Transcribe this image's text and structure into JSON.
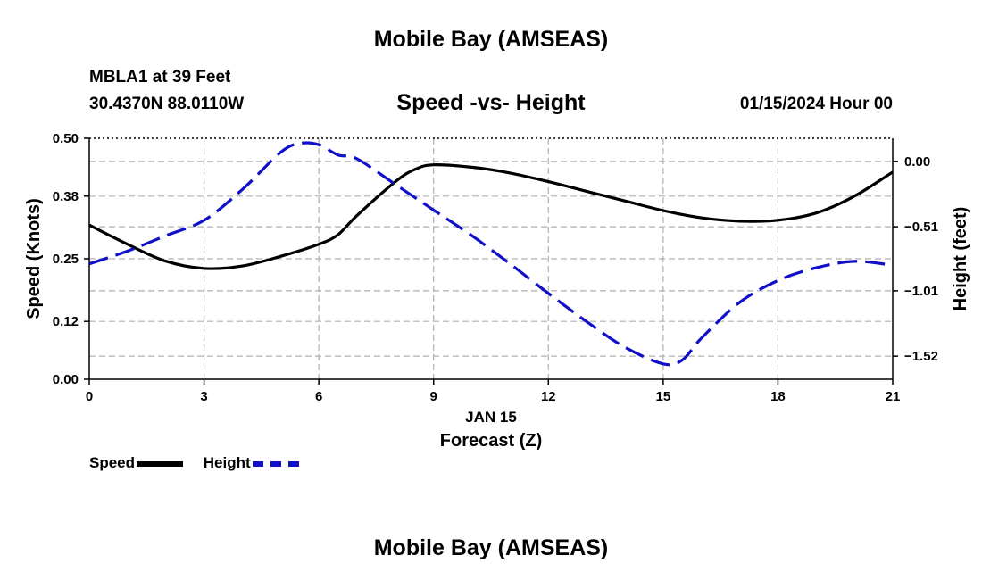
{
  "header": {
    "title": "Mobile Bay (AMSEAS)",
    "station": "MBLA1 at 39 Feet",
    "coords": "30.4370N  88.0110W",
    "subtitle": "Speed -vs- Height",
    "datetime": "01/15/2024 Hour 00"
  },
  "footer": {
    "title": "Mobile Bay (AMSEAS)"
  },
  "legend": {
    "speed_label": "Speed",
    "height_label": "Height"
  },
  "colors": {
    "speed": "#000000",
    "height": "#1010c8",
    "grid": "#b0b0b0"
  },
  "chart_data": {
    "type": "line",
    "title": "Speed -vs- Height",
    "xlabel": "Forecast (Z)",
    "date_label": "JAN 15",
    "ylabel": "Speed (Knots)",
    "y2label": "Height (feet)",
    "xlim": [
      0,
      21
    ],
    "ylim": [
      0,
      0.5
    ],
    "y2lim": [
      -1.7,
      0.18
    ],
    "x_ticks": [
      "0",
      "3",
      "6",
      "9",
      "12",
      "15",
      "18",
      "21"
    ],
    "y_ticks": [
      "0.00",
      "0.12",
      "0.25",
      "0.38",
      "0.50"
    ],
    "y2_ticks": [
      "0.00",
      "-0.51",
      "-1.01",
      "-1.52"
    ],
    "y2_tick_values": [
      0.0,
      -0.51,
      -1.01,
      -1.52
    ],
    "grid": true,
    "series": [
      {
        "name": "Speed",
        "axis": "left",
        "x": [
          0,
          1,
          2,
          3,
          4,
          5,
          6,
          6.5,
          7,
          8,
          8.5,
          9,
          10,
          11,
          12,
          13,
          14,
          15,
          16,
          17,
          18,
          19,
          20,
          21
        ],
        "values": [
          0.32,
          0.28,
          0.245,
          0.23,
          0.235,
          0.255,
          0.28,
          0.3,
          0.34,
          0.41,
          0.435,
          0.445,
          0.44,
          0.428,
          0.41,
          0.39,
          0.37,
          0.35,
          0.335,
          0.328,
          0.33,
          0.345,
          0.38,
          0.43
        ]
      },
      {
        "name": "Height",
        "axis": "right",
        "x": [
          0,
          1,
          2,
          3,
          4,
          5,
          5.5,
          6,
          6.5,
          7,
          8,
          9,
          10,
          11,
          12,
          13,
          14,
          15,
          15.5,
          16,
          17,
          18,
          19,
          20,
          21
        ],
        "values": [
          -0.8,
          -0.7,
          -0.58,
          -0.46,
          -0.22,
          0.07,
          0.14,
          0.13,
          0.05,
          0.02,
          -0.18,
          -0.38,
          -0.58,
          -0.8,
          -1.03,
          -1.25,
          -1.45,
          -1.58,
          -1.55,
          -1.38,
          -1.1,
          -0.93,
          -0.83,
          -0.78,
          -0.81
        ]
      }
    ]
  }
}
